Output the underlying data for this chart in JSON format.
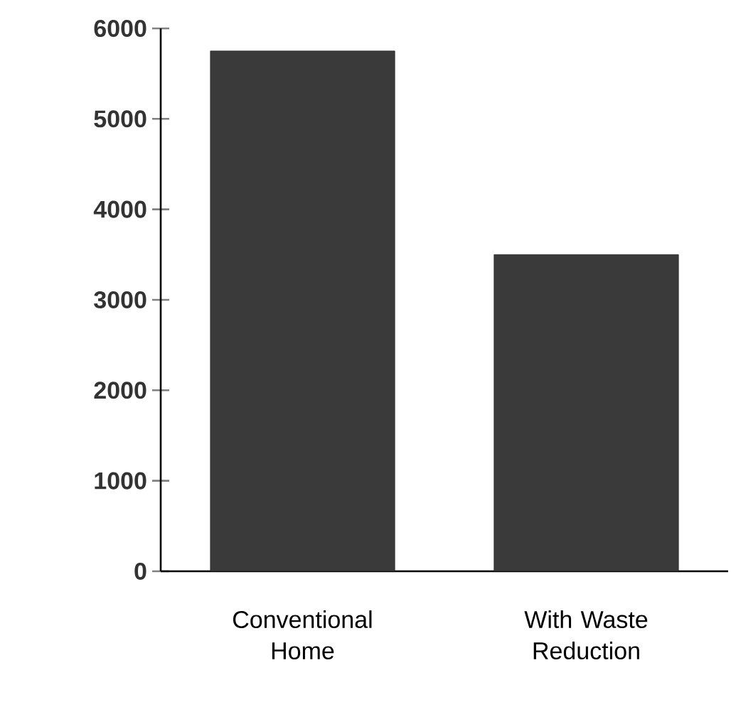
{
  "chart_data": {
    "type": "bar",
    "categories": [
      "Conventional Home",
      "With Waste Reduction"
    ],
    "values": [
      5750,
      3500
    ],
    "color": "#3a3a3a",
    "ylim": [
      0,
      6000
    ],
    "yticks": [
      0,
      1000,
      2000,
      3000,
      4000,
      5000,
      6000
    ],
    "grid": false
  }
}
